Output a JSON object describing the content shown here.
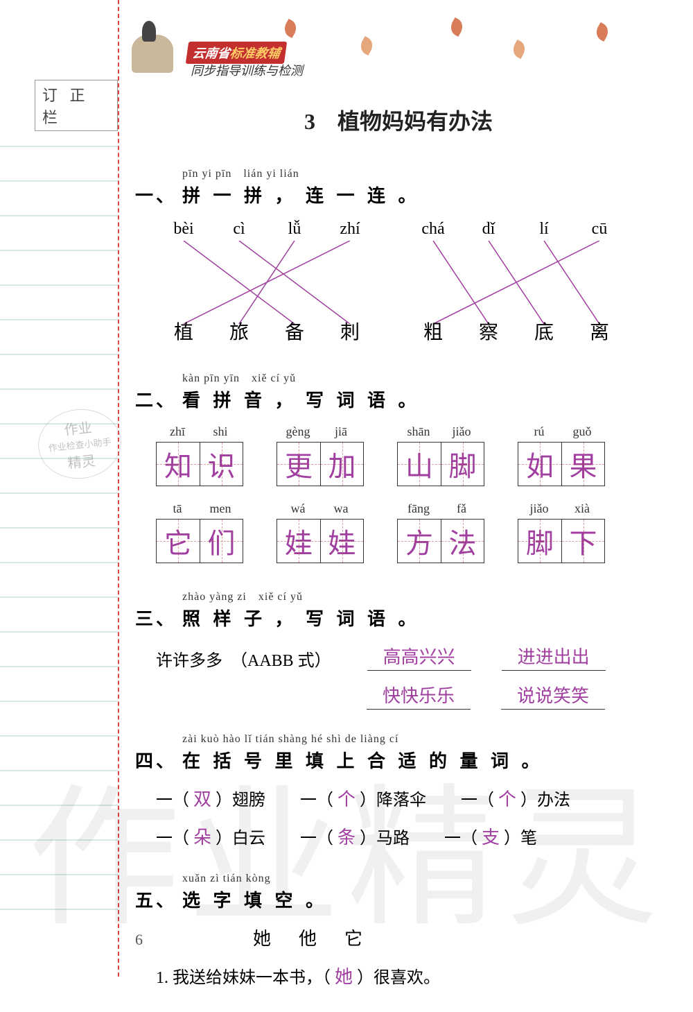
{
  "margin_label": "订 正 栏",
  "header": {
    "brand_prefix": "云南省",
    "brand_suffix": "标准教辅",
    "subtitle": "同步指导训练与检测",
    "leaf_color_1": "#d97c5a",
    "leaf_color_2": "#e6a77c"
  },
  "lesson_title": "3　植物妈妈有办法",
  "section1": {
    "num": "一、",
    "pinyin": "pīn yi pīn　lián yi lián",
    "title": "拼 一 拼 ， 连 一 连 。",
    "top_items": [
      "bèi",
      "cì",
      "lǚ",
      "zhí",
      "chá",
      "dǐ",
      "lí",
      "cū"
    ],
    "bot_items": [
      "植",
      "旅",
      "备",
      "刺",
      "粗",
      "察",
      "底",
      "离"
    ],
    "line_color": "#a040a0",
    "lines": [
      {
        "from": 0,
        "to": 2
      },
      {
        "from": 1,
        "to": 3
      },
      {
        "from": 2,
        "to": 1
      },
      {
        "from": 3,
        "to": 0
      },
      {
        "from": 4,
        "to": 5
      },
      {
        "from": 5,
        "to": 6
      },
      {
        "from": 6,
        "to": 7
      },
      {
        "from": 7,
        "to": 4
      }
    ]
  },
  "section2": {
    "num": "二、",
    "pinyin": "kàn pīn yīn　xiě cí yǔ",
    "title": "看 拼 音 ， 写 词 语 。",
    "answer_color": "#a03fa0",
    "rows": [
      [
        {
          "pinyin": [
            "zhī",
            "shi"
          ],
          "chars": [
            "知",
            "识"
          ]
        },
        {
          "pinyin": [
            "gèng",
            "jiā"
          ],
          "chars": [
            "更",
            "加"
          ]
        },
        {
          "pinyin": [
            "shān",
            "jiǎo"
          ],
          "chars": [
            "山",
            "脚"
          ]
        },
        {
          "pinyin": [
            "rú",
            "guǒ"
          ],
          "chars": [
            "如",
            "果"
          ]
        }
      ],
      [
        {
          "pinyin": [
            "tā",
            "men"
          ],
          "chars": [
            "它",
            "们"
          ]
        },
        {
          "pinyin": [
            "wá",
            "wa"
          ],
          "chars": [
            "娃",
            "娃"
          ]
        },
        {
          "pinyin": [
            "fāng",
            "fǎ"
          ],
          "chars": [
            "方",
            "法"
          ]
        },
        {
          "pinyin": [
            "jiǎo",
            "xià"
          ],
          "chars": [
            "脚",
            "下"
          ]
        }
      ]
    ]
  },
  "section3": {
    "num": "三、",
    "pinyin": "zhào yàng zi　xiě cí yǔ",
    "title": "照 样 子 ， 写 词 语 。",
    "example_label": "许许多多　（AABB 式）",
    "answers": [
      "高高兴兴",
      "进进出出",
      "快快乐乐",
      "说说笑笑"
    ]
  },
  "section4": {
    "num": "四、",
    "pinyin": "zài kuò hào lǐ tián shàng hé shì de liàng cí",
    "title": "在 括 号 里 填 上 合 适 的 量 词 。",
    "rows": [
      [
        {
          "prefix": "一（",
          "ans": "双",
          "suffix": "）翅膀"
        },
        {
          "prefix": "一（",
          "ans": "个",
          "suffix": "）降落伞"
        },
        {
          "prefix": "一（",
          "ans": "个",
          "suffix": "）办法"
        }
      ],
      [
        {
          "prefix": "一（",
          "ans": "朵",
          "suffix": "）白云"
        },
        {
          "prefix": "一（",
          "ans": "条",
          "suffix": "）马路"
        },
        {
          "prefix": "一（",
          "ans": "支",
          "suffix": "）笔"
        }
      ]
    ]
  },
  "section5": {
    "num": "五、",
    "pinyin": "xuǎn zì tián kòng",
    "title": "选 字 填 空 。",
    "choices": "她他它",
    "item": {
      "num": "1.",
      "text_before": "我送给妹妹一本书，（",
      "ans": "她",
      "text_after": "）很喜欢。"
    }
  },
  "page_number": "6",
  "watermark_text": "作业精灵",
  "stamp": {
    "line1": "作业",
    "line2": "作业检查小助手",
    "line3": "精灵"
  },
  "hline_color": "#d6e8e8",
  "hline_positions": [
    210,
    260,
    310,
    360,
    410,
    460,
    510,
    560,
    610,
    660,
    710,
    760,
    810,
    860,
    910,
    960,
    1010,
    1060,
    1110,
    1160,
    1210,
    1260,
    1310
  ]
}
